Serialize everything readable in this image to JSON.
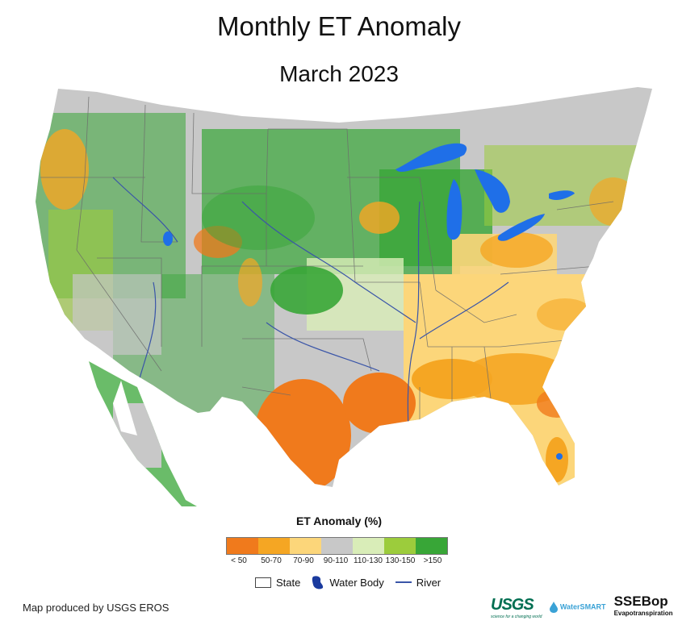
{
  "title": "Monthly ET Anomaly",
  "subtitle": "March 2023",
  "legend": {
    "title": "ET Anomaly (%)",
    "classes": [
      {
        "label": "< 50",
        "color": "#f07a1c"
      },
      {
        "label": "50-70",
        "color": "#f5a623"
      },
      {
        "label": "70-90",
        "color": "#fcd67a"
      },
      {
        "label": "90-110",
        "color": "#c8c8c8"
      },
      {
        "label": "110-130",
        "color": "#d9edb8"
      },
      {
        "label": "130-150",
        "color": "#9ccc3c"
      },
      {
        "label": ">150",
        "color": "#38a637"
      }
    ],
    "symbols": {
      "state": "State",
      "water": "Water Body",
      "river": "River"
    }
  },
  "colors": {
    "water": "#1f6fe8",
    "state_border": "#6b6b6b",
    "river": "#3a55a8"
  },
  "credit": "Map produced by USGS EROS",
  "logos": {
    "usgs": "USGS",
    "usgs_tagline": "science for a changing world",
    "watersmart": "WaterSMART",
    "ssebop": "SSEBop",
    "ssebop_sub": "Evapotranspiration"
  }
}
